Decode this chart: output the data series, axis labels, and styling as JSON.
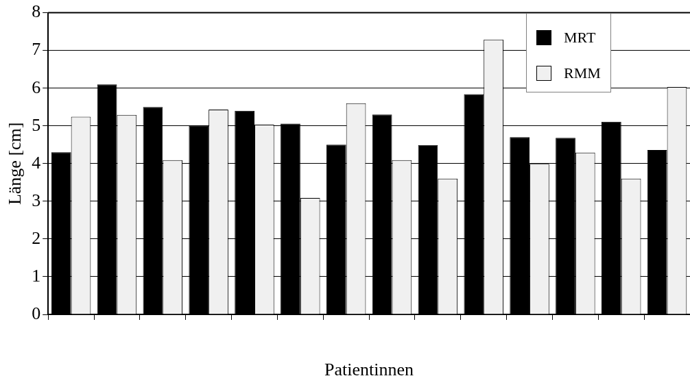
{
  "chart_data": {
    "type": "bar",
    "xlabel": "Patientinnen",
    "ylabel": "Länge [cm]",
    "categories": [
      null,
      null,
      null,
      null,
      null,
      null,
      null,
      null,
      null,
      null,
      null,
      null,
      null,
      null
    ],
    "series": [
      {
        "name": "MRT",
        "color": "#000000",
        "values": [
          4.3,
          6.1,
          5.5,
          5.0,
          5.4,
          5.06,
          4.5,
          5.3,
          4.49,
          5.84,
          4.7,
          4.68,
          5.11,
          4.36
        ]
      },
      {
        "name": "RMM",
        "color": "#f0f0f0",
        "values": [
          5.24,
          5.29,
          4.09,
          5.43,
          5.03,
          3.09,
          5.6,
          4.09,
          3.6,
          7.29,
          3.99,
          4.29,
          3.6,
          6.03
        ]
      }
    ],
    "ylim": [
      0,
      8
    ],
    "yticks": [
      0,
      1,
      2,
      3,
      4,
      5,
      6,
      7,
      8
    ],
    "grid": "y",
    "legend": "top right"
  }
}
